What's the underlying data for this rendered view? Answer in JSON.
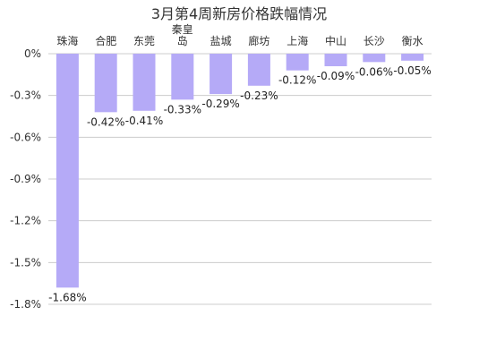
{
  "chart_data": {
    "type": "bar",
    "title": "3月第4周新房价格跌幅情况",
    "categories": [
      "珠海",
      "合肥",
      "东莞",
      "秦皇岛",
      "盐城",
      "廊坊",
      "上海",
      "中山",
      "长沙",
      "衡水"
    ],
    "values": [
      -1.68,
      -0.42,
      -0.41,
      -0.33,
      -0.29,
      -0.23,
      -0.12,
      -0.09,
      -0.06,
      -0.05
    ],
    "value_labels": [
      "-1.68%",
      "-0.42%",
      "-0.41%",
      "-0.33%",
      "-0.29%",
      "-0.23%",
      "-0.12%",
      "-0.09%",
      "-0.06%",
      "-0.05%"
    ],
    "y_ticks": [
      0,
      -0.3,
      -0.6,
      -0.9,
      -1.2,
      -1.5,
      -1.8
    ],
    "y_tick_labels": [
      "0%",
      "-0.3%",
      "-0.6%",
      "-0.9%",
      "-1.2%",
      "-1.5%",
      "-1.8%"
    ],
    "ylim": [
      -1.8,
      0
    ],
    "xaxis_position": "top",
    "grid": true,
    "legend": "none",
    "bar_color": "#b5aaf7",
    "grid_color": "#cccccc"
  }
}
